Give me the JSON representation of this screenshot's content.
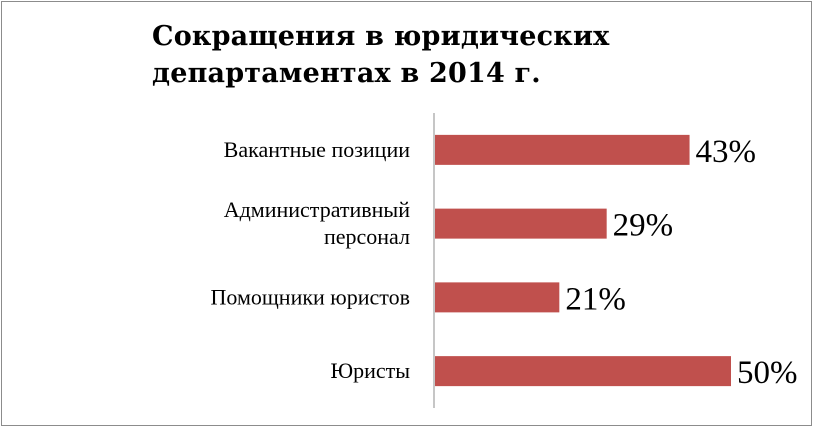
{
  "chart_data": {
    "type": "bar",
    "orientation": "horizontal",
    "title": "Сокращения в юридических департаментах в 2014 г.",
    "title_lines": [
      "Сокращения в юридических",
      "департаментах в 2014 г."
    ],
    "categories": [
      [
        "Вакантные позиции"
      ],
      [
        "Административный",
        "персонал"
      ],
      [
        "Помощники юристов"
      ],
      [
        "Юристы"
      ]
    ],
    "values": [
      43,
      29,
      21,
      50
    ],
    "data_labels": [
      "43%",
      "29%",
      "21%",
      "50%"
    ],
    "xlim": [
      0,
      50
    ],
    "grid": false,
    "legend": "none",
    "colors": {
      "bar": "#c0504d",
      "axis": "#8c8c8c"
    }
  }
}
